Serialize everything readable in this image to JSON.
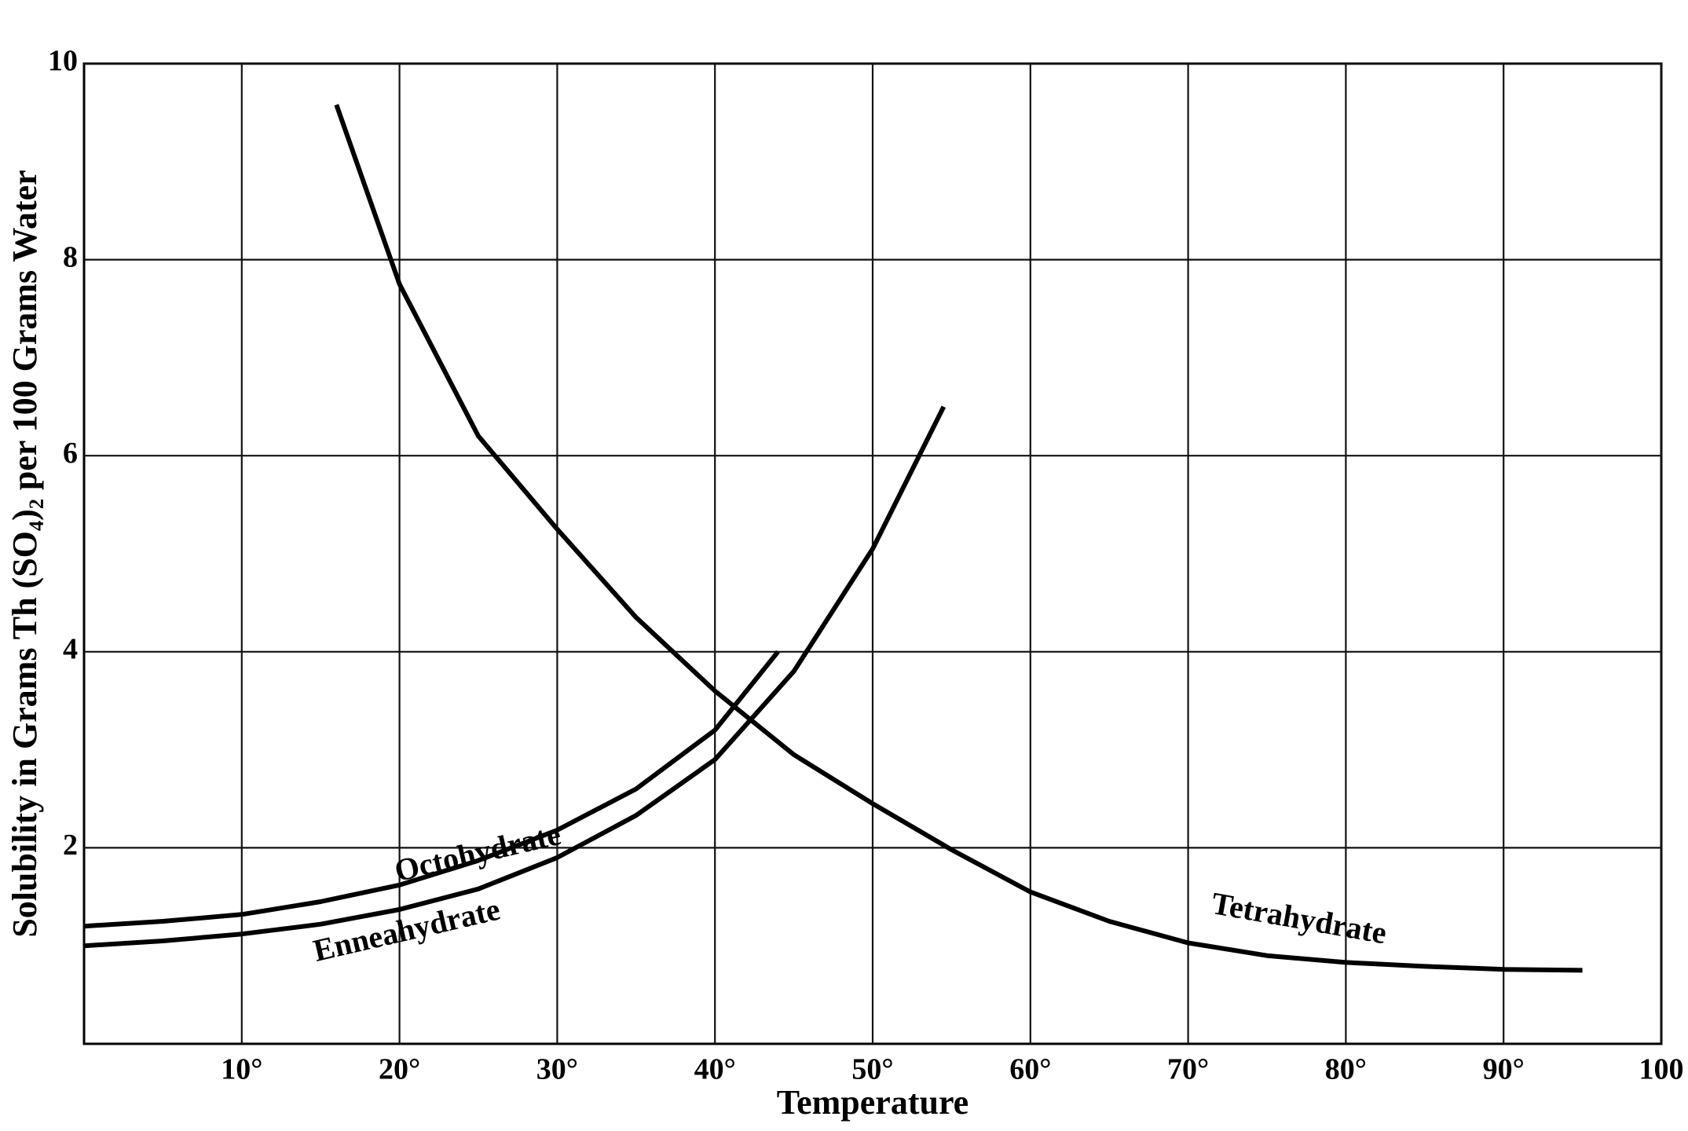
{
  "chart_data": {
    "type": "line",
    "xlabel": "Temperature",
    "ylabel": "Solubility in Grams Th (SO₄)₂ per 100 Grams Water",
    "xlim": [
      0,
      100
    ],
    "ylim": [
      0,
      10
    ],
    "xticks": [
      {
        "value": 10,
        "label": "10°"
      },
      {
        "value": 20,
        "label": "20°"
      },
      {
        "value": 30,
        "label": "30°"
      },
      {
        "value": 40,
        "label": "40°"
      },
      {
        "value": 50,
        "label": "50°"
      },
      {
        "value": 60,
        "label": "60°"
      },
      {
        "value": 70,
        "label": "70°"
      },
      {
        "value": 80,
        "label": "80°"
      },
      {
        "value": 90,
        "label": "90°"
      },
      100
    ],
    "yticks": [
      2,
      4,
      6,
      8,
      10
    ],
    "grid": true,
    "series": [
      {
        "name": "Octohydrate",
        "color": "#000000",
        "x": [
          0,
          5,
          10,
          15,
          20,
          25,
          30,
          35,
          40,
          44
        ],
        "values": [
          1.2,
          1.25,
          1.32,
          1.45,
          1.62,
          1.87,
          2.18,
          2.6,
          3.2,
          4.0
        ]
      },
      {
        "name": "Enneahydrate",
        "color": "#000000",
        "x": [
          0,
          5,
          10,
          15,
          20,
          25,
          30,
          35,
          40,
          45,
          50,
          54.5
        ],
        "values": [
          1.0,
          1.05,
          1.12,
          1.22,
          1.37,
          1.58,
          1.9,
          2.33,
          2.9,
          3.8,
          5.05,
          6.5
        ]
      },
      {
        "name": "Tetrahydrate",
        "color": "#000000",
        "x": [
          16,
          20,
          25,
          30,
          35,
          40,
          45,
          50,
          55,
          60,
          65,
          70,
          75,
          80,
          85,
          90,
          95
        ],
        "values": [
          9.58,
          7.75,
          6.2,
          5.25,
          4.35,
          3.6,
          2.95,
          2.45,
          1.98,
          1.55,
          1.25,
          1.03,
          0.9,
          0.83,
          0.79,
          0.76,
          0.75
        ]
      }
    ]
  }
}
